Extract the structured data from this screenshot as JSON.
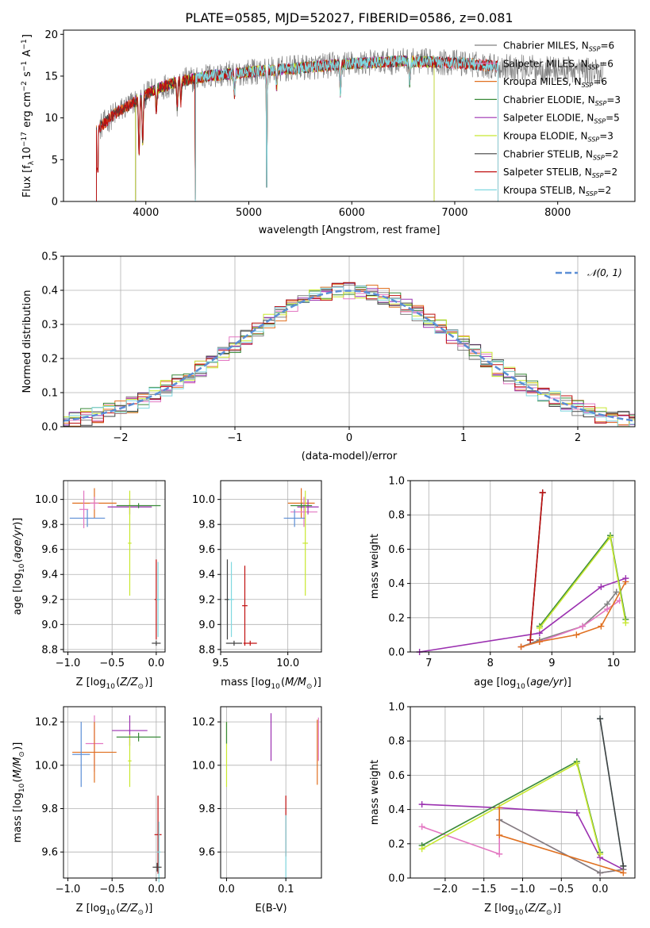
{
  "figure": {
    "title": "PLATE=0585, MJD=52027, FIBERID=0586, z=0.081"
  },
  "colors": {
    "chab_miles": "#808080",
    "salp_miles": "#e377c2",
    "krou_miles": "#e07020",
    "chab_elodie": "#3a8a3a",
    "salp_elodie": "#9b30b0",
    "krou_elodie": "#c8e830",
    "chab_stelib": "#404040",
    "salp_stelib": "#c01010",
    "krou_stelib": "#80d8e0",
    "gauss": "#5b8ed6",
    "blue": "#5b8ed6"
  },
  "chart_data": [
    {
      "id": "spectrum",
      "type": "line",
      "title": "PLATE=0585, MJD=52027, FIBERID=0586, z=0.081",
      "xlabel": "wavelength [Angstrom, rest frame]",
      "ylabel": "Flux [f_λ 10^-17 erg cm^-2 s^-1 A^-1]",
      "xlim": [
        3200,
        8750
      ],
      "ylim": [
        0,
        20.5
      ],
      "xticks": [
        4000,
        5000,
        6000,
        7000,
        8000
      ],
      "yticks": [
        0,
        5,
        10,
        15,
        20
      ],
      "legend_position": "top-right",
      "legend": [
        {
          "key": "chab_miles",
          "text": "Chabrier MILES, N",
          "sub": "SSP",
          "tail": "=6"
        },
        {
          "key": "salp_miles",
          "text": "Salpeter MILES, N",
          "sub": "SSP",
          "tail": "=6"
        },
        {
          "key": "krou_miles",
          "text": "Kroupa MILES, N",
          "sub": "SSP",
          "tail": "=6"
        },
        {
          "key": "chab_elodie",
          "text": "Chabrier ELODIE, N",
          "sub": "SSP",
          "tail": "=3"
        },
        {
          "key": "salp_elodie",
          "text": "Salpeter ELODIE, N",
          "sub": "SSP",
          "tail": "=5"
        },
        {
          "key": "krou_elodie",
          "text": "Kroupa ELODIE, N",
          "sub": "SSP",
          "tail": "=3"
        },
        {
          "key": "chab_stelib",
          "text": "Chabrier STELIB, N",
          "sub": "SSP",
          "tail": "=2"
        },
        {
          "key": "salp_stelib",
          "text": "Salpeter STELIB, N",
          "sub": "SSP",
          "tail": "=2"
        },
        {
          "key": "krou_stelib",
          "text": "Kroupa STELIB, N",
          "sub": "SSP",
          "tail": "=2"
        }
      ],
      "ranges": {
        "chab_miles": [
          3520,
          8450
        ],
        "salp_miles": [
          3520,
          7420
        ],
        "krou_miles": [
          3520,
          7420
        ],
        "chab_elodie": [
          3900,
          6800
        ],
        "salp_elodie": [
          3900,
          6800
        ],
        "krou_elodie": [
          3900,
          6800
        ],
        "chab_stelib": [
          3520,
          7420
        ],
        "salp_stelib": [
          3520,
          7420
        ],
        "krou_stelib": [
          4480,
          7420
        ]
      },
      "continuum_anchors": [
        [
          3520,
          8.5
        ],
        [
          3700,
          10.5
        ],
        [
          3900,
          12
        ],
        [
          4100,
          13.5
        ],
        [
          4300,
          14.3
        ],
        [
          4600,
          15
        ],
        [
          5000,
          15.5
        ],
        [
          5500,
          16
        ],
        [
          6000,
          16.5
        ],
        [
          6500,
          16.8
        ],
        [
          7000,
          16.6
        ],
        [
          7400,
          16.2
        ],
        [
          8000,
          15.8
        ],
        [
          8450,
          15.5
        ]
      ],
      "absorption": [
        [
          3934,
          6.5
        ],
        [
          3969,
          5.5
        ],
        [
          4102,
          2.5
        ],
        [
          4305,
          3
        ],
        [
          4340,
          2.5
        ],
        [
          4861,
          2.5
        ],
        [
          5175,
          4
        ],
        [
          5270,
          2
        ],
        [
          5890,
          3.5
        ],
        [
          6563,
          2.5
        ],
        [
          8498,
          2
        ],
        [
          8542,
          2.5
        ],
        [
          8662,
          2
        ]
      ],
      "deep_drops": [
        [
          3525,
          4.0
        ],
        [
          3535,
          3.5
        ],
        [
          4480,
          0.2
        ],
        [
          5175,
          1.7
        ]
      ]
    },
    {
      "id": "residuals",
      "type": "bar",
      "xlabel": "(data-model)/error",
      "ylabel": "Normed distribution",
      "xlim": [
        -2.5,
        2.5
      ],
      "ylim": [
        0,
        0.5
      ],
      "xticks": [
        -2,
        -1,
        0,
        1,
        2
      ],
      "yticks": [
        0.0,
        0.1,
        0.2,
        0.3,
        0.4,
        0.5
      ],
      "legend_position": "top-right",
      "gauss_label": "𝒩(0, 1)",
      "bin_width": 0.1
    },
    {
      "id": "age_vs_Z",
      "type": "scatter",
      "xlabel": "Z [log10(Z/Z☉)]",
      "ylabel": "age [log10(age/yr)]",
      "xlim": [
        -1.05,
        0.1
      ],
      "ylim": [
        8.78,
        10.15
      ],
      "xticks": [
        -1.0,
        -0.5,
        0.0
      ],
      "yticks": [
        8.8,
        9.0,
        9.2,
        9.4,
        9.6,
        9.8,
        10.0
      ],
      "errorbars": [
        {
          "c": "krou_miles",
          "x": -0.7,
          "xe": 0.25,
          "y": 9.97,
          "ye": 0.12
        },
        {
          "c": "salp_miles",
          "x": -0.7,
          "xe": 0.05,
          "y": 9.97,
          "ye": 0.05
        },
        {
          "c": "blue",
          "x": -0.78,
          "xe": 0.2,
          "y": 9.85,
          "ye": 0.07
        },
        {
          "c": "salp_miles",
          "x": -0.82,
          "xe": 0.05,
          "y": 9.92,
          "ye": 0.15
        },
        {
          "c": "salp_elodie",
          "x": -0.3,
          "xe": 0.25,
          "y": 9.94,
          "ye": 0.06
        },
        {
          "c": "krou_elodie",
          "x": -0.3,
          "xe": 0.02,
          "y": 9.65,
          "ye": 0.42
        },
        {
          "c": "chab_elodie",
          "x": -0.2,
          "xe": 0.25,
          "y": 9.95,
          "ye": 0.02
        },
        {
          "c": "salp_stelib",
          "x": 0.0,
          "xe": 0.02,
          "y": 9.2,
          "ye": 0.32
        },
        {
          "c": "krou_stelib",
          "x": 0.02,
          "xe": 0.02,
          "y": 9.2,
          "ye": 0.3
        },
        {
          "c": "chab_stelib",
          "x": 0.0,
          "xe": 0.05,
          "y": 8.85,
          "ye": 0.02
        }
      ]
    },
    {
      "id": "age_vs_mass",
      "type": "scatter",
      "xlabel": "mass [log10(M/M☉)]",
      "ylabel": "",
      "xlim": [
        9.5,
        10.25
      ],
      "ylim": [
        8.78,
        10.15
      ],
      "xticks": [
        9.5,
        10.0
      ],
      "yticks": [
        8.8,
        9.0,
        9.2,
        9.4,
        9.6,
        9.8,
        10.0
      ],
      "errorbars": [
        {
          "c": "krou_miles",
          "x": 10.1,
          "xe": 0.1,
          "y": 9.97,
          "ye": 0.12
        },
        {
          "c": "salp_miles",
          "x": 10.12,
          "xe": 0.1,
          "y": 9.9,
          "ye": 0.12
        },
        {
          "c": "blue",
          "x": 10.05,
          "xe": 0.08,
          "y": 9.85,
          "ye": 0.07
        },
        {
          "c": "salp_elodie",
          "x": 10.15,
          "xe": 0.08,
          "y": 9.94,
          "ye": 0.06
        },
        {
          "c": "krou_elodie",
          "x": 10.13,
          "xe": 0.02,
          "y": 9.65,
          "ye": 0.42
        },
        {
          "c": "chab_elodie",
          "x": 10.1,
          "xe": 0.08,
          "y": 9.95,
          "ye": 0.02
        },
        {
          "c": "chab_stelib",
          "x": 9.55,
          "xe": 0.02,
          "y": 9.2,
          "ye": 0.32
        },
        {
          "c": "krou_stelib",
          "x": 9.58,
          "xe": 0.02,
          "y": 9.2,
          "ye": 0.3
        },
        {
          "c": "salp_stelib",
          "x": 9.68,
          "xe": 0.02,
          "y": 9.15,
          "ye": 0.32
        },
        {
          "c": "chab_stelib",
          "x": 9.6,
          "xe": 0.06,
          "y": 8.85,
          "ye": 0.02
        },
        {
          "c": "salp_stelib",
          "x": 9.72,
          "xe": 0.05,
          "y": 8.85,
          "ye": 0.02
        }
      ]
    },
    {
      "id": "weight_vs_age",
      "type": "line",
      "xlabel": "age [log10(age/yr)]",
      "ylabel": "mass weight",
      "xlim": [
        6.7,
        10.35
      ],
      "ylim": [
        0,
        1
      ],
      "xticks": [
        7,
        8,
        9,
        10
      ],
      "yticks": [
        0.0,
        0.2,
        0.4,
        0.6,
        0.8,
        1.0
      ],
      "series": [
        {
          "c": "chab_miles",
          "x": [
            8.5,
            8.8,
            9.5,
            9.9,
            10.05
          ],
          "y": [
            0.03,
            0.07,
            0.15,
            0.28,
            0.35
          ]
        },
        {
          "c": "salp_miles",
          "x": [
            8.5,
            8.8,
            9.5,
            9.9,
            10.1
          ],
          "y": [
            0.03,
            0.06,
            0.15,
            0.25,
            0.3
          ]
        },
        {
          "c": "krou_miles",
          "x": [
            8.5,
            8.8,
            9.4,
            9.8,
            10.2
          ],
          "y": [
            0.03,
            0.06,
            0.1,
            0.15,
            0.41
          ]
        },
        {
          "c": "salp_elodie",
          "x": [
            6.85,
            8.8,
            9.8,
            10.2
          ],
          "y": [
            0.0,
            0.11,
            0.38,
            0.43
          ]
        },
        {
          "c": "chab_elodie",
          "x": [
            8.8,
            9.95,
            10.2
          ],
          "y": [
            0.15,
            0.68,
            0.19
          ]
        },
        {
          "c": "krou_elodie",
          "x": [
            8.8,
            9.95,
            10.2
          ],
          "y": [
            0.14,
            0.67,
            0.17
          ]
        },
        {
          "c": "krou_stelib",
          "x": [
            8.65,
            8.85
          ],
          "y": [
            0.07,
            0.93
          ]
        },
        {
          "c": "chab_stelib",
          "x": [
            8.65,
            8.85
          ],
          "y": [
            0.07,
            0.93
          ]
        },
        {
          "c": "salp_stelib",
          "x": [
            8.65,
            8.85
          ],
          "y": [
            0.07,
            0.93
          ]
        }
      ]
    },
    {
      "id": "mass_vs_Z",
      "type": "scatter",
      "xlabel": "Z [log10(Z/Z☉)]",
      "ylabel": "mass [log10(M/M☉)]",
      "xlim": [
        -1.05,
        0.1
      ],
      "ylim": [
        9.48,
        10.27
      ],
      "xticks": [
        -1.0,
        -0.5,
        0.0
      ],
      "yticks": [
        9.6,
        9.8,
        10.0,
        10.2
      ],
      "errorbars": [
        {
          "c": "salp_miles",
          "x": -0.7,
          "xe": 0.1,
          "y": 10.1,
          "ye": 0.13
        },
        {
          "c": "krou_miles",
          "x": -0.7,
          "xe": 0.25,
          "y": 10.06,
          "ye": 0.14
        },
        {
          "c": "blue",
          "x": -0.85,
          "xe": 0.1,
          "y": 10.05,
          "ye": 0.15
        },
        {
          "c": "salp_elodie",
          "x": -0.3,
          "xe": 0.2,
          "y": 10.16,
          "ye": 0.07
        },
        {
          "c": "krou_elodie",
          "x": -0.3,
          "xe": 0.02,
          "y": 10.02,
          "ye": 0.12
        },
        {
          "c": "chab_elodie",
          "x": -0.2,
          "xe": 0.25,
          "y": 10.13,
          "ye": 0.02
        },
        {
          "c": "salp_stelib",
          "x": 0.02,
          "xe": 0.04,
          "y": 9.68,
          "ye": 0.18
        },
        {
          "c": "krou_stelib",
          "x": 0.03,
          "xe": 0.02,
          "y": 9.6,
          "ye": 0.14
        },
        {
          "c": "chab_stelib",
          "x": 0.01,
          "xe": 0.05,
          "y": 9.53,
          "ye": 0.02
        }
      ]
    },
    {
      "id": "mass_vs_EBV",
      "type": "scatter",
      "xlabel": "E(B-V)",
      "ylabel": "",
      "xlim": [
        -0.01,
        0.16
      ],
      "ylim": [
        9.48,
        10.27
      ],
      "xticks": [
        0.0,
        0.1
      ],
      "yticks": [
        9.6,
        9.8,
        10.0,
        10.2
      ],
      "errorbars": [
        {
          "c": "krou_elodie",
          "x": 0.0,
          "xe": 0,
          "y": 10.05,
          "ye": 0.15
        },
        {
          "c": "chab_elodie",
          "x": 0.0,
          "xe": 0,
          "y": 10.15,
          "ye": 0.05
        },
        {
          "c": "salp_elodie",
          "x": 0.075,
          "xe": 0,
          "y": 10.13,
          "ye": 0.11
        },
        {
          "c": "salp_stelib",
          "x": 0.1,
          "xe": 0,
          "y": 9.72,
          "ye": 0.14
        },
        {
          "c": "krou_stelib",
          "x": 0.1,
          "xe": 0,
          "y": 9.62,
          "ye": 0.15
        },
        {
          "c": "salp_miles",
          "x": 0.155,
          "xe": 0,
          "y": 10.12,
          "ye": 0.1
        },
        {
          "c": "krou_miles",
          "x": 0.153,
          "xe": 0,
          "y": 10.06,
          "ye": 0.15
        }
      ]
    },
    {
      "id": "weight_vs_Z",
      "type": "line",
      "xlabel": "Z [log10(Z/Z☉)]",
      "ylabel": "mass weight",
      "xlim": [
        -2.45,
        0.45
      ],
      "ylim": [
        0,
        1
      ],
      "xticks": [
        -2.0,
        -1.5,
        -1.0,
        -0.5,
        0.0
      ],
      "yticks": [
        0.0,
        0.2,
        0.4,
        0.6,
        0.8,
        1.0
      ],
      "series": [
        {
          "c": "salp_elodie",
          "x": [
            -2.3,
            -1.3,
            -0.3,
            0.0,
            0.3
          ],
          "y": [
            0.43,
            0.41,
            0.38,
            0.12,
            0.05
          ]
        },
        {
          "c": "salp_miles",
          "x": [
            -2.3,
            -1.3,
            -1.3,
            0.0,
            0.3
          ],
          "y": [
            0.3,
            0.14,
            0.34,
            0.03,
            0.05
          ]
        },
        {
          "c": "chab_miles",
          "x": [
            -1.3,
            0.0,
            0.3
          ],
          "y": [
            0.34,
            0.03,
            0.05
          ]
        },
        {
          "c": "krou_miles",
          "x": [
            -1.3,
            -1.3,
            0.3
          ],
          "y": [
            0.41,
            0.25,
            0.03
          ]
        },
        {
          "c": "chab_elodie",
          "x": [
            -2.3,
            -0.3,
            0.0
          ],
          "y": [
            0.19,
            0.68,
            0.15
          ]
        },
        {
          "c": "krou_elodie",
          "x": [
            -2.3,
            -0.3,
            0.0
          ],
          "y": [
            0.17,
            0.67,
            0.14
          ]
        },
        {
          "c": "krou_stelib",
          "x": [
            0.0,
            0.3
          ],
          "y": [
            0.93,
            0.07
          ]
        },
        {
          "c": "chab_stelib",
          "x": [
            0.0,
            0.3
          ],
          "y": [
            0.93,
            0.07
          ]
        }
      ]
    }
  ]
}
